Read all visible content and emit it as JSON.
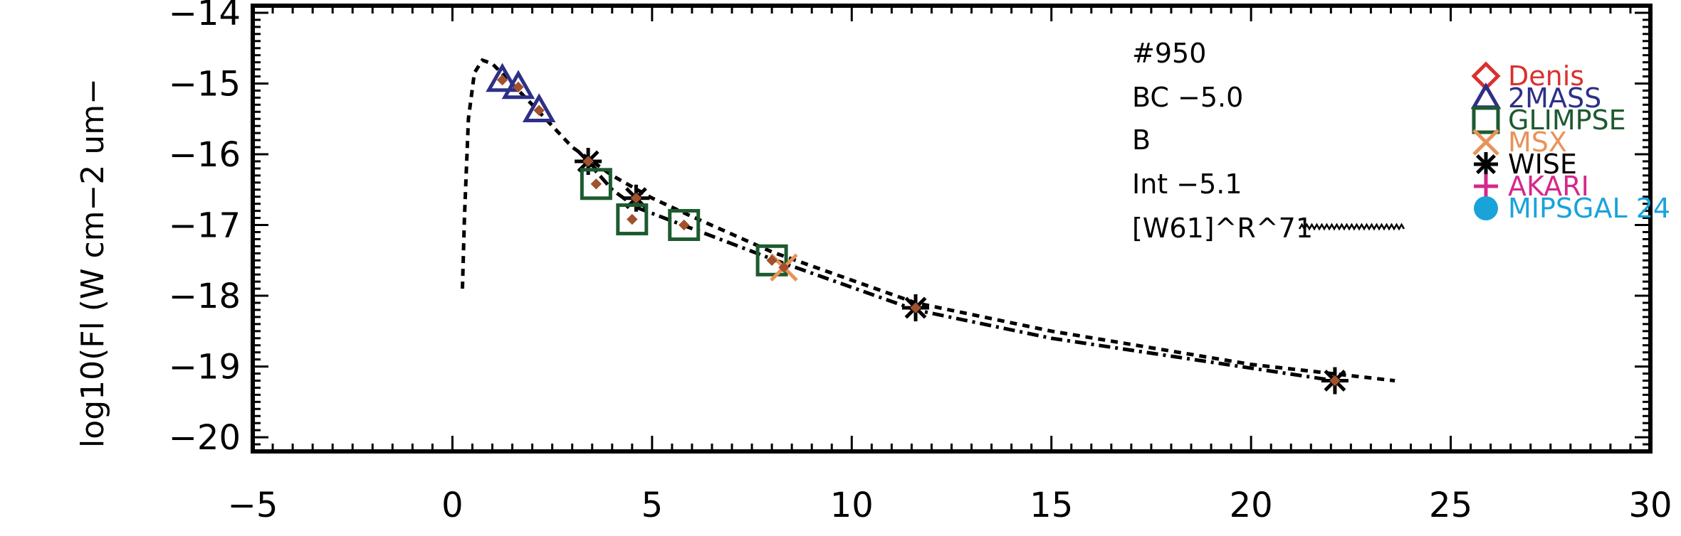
{
  "chart_data": {
    "type": "scatter",
    "title": "",
    "xlabel": "",
    "ylabel": "log10(Fl (W cm−2 um−",
    "xlim": [
      -5,
      30
    ],
    "ylim": [
      -20.2,
      -13.9
    ],
    "x_ticks": [
      -5,
      0,
      5,
      10,
      15,
      20,
      25,
      30
    ],
    "x_tick_labels": [
      "−5",
      "0",
      "5",
      "10",
      "15",
      "20",
      "25",
      "30"
    ],
    "y_ticks": [
      -20,
      -19,
      -18,
      -17,
      -16,
      -15,
      -14
    ],
    "y_tick_labels": [
      "−20",
      "−19",
      "−18",
      "−17",
      "−16",
      "−15",
      "−14"
    ],
    "annotations": [
      "#950",
      "BC −5.0",
      "B",
      "Int −5.1",
      "[W61]^R^71"
    ],
    "legend": {
      "placement": "top-right",
      "entries": [
        {
          "label": "Denis",
          "marker": "diamond",
          "color": "#d8312f"
        },
        {
          "label": "2MASS",
          "marker": "triangle",
          "color": "#2e2f86"
        },
        {
          "label": "GLIMPSE",
          "marker": "square",
          "color": "#1d5a30"
        },
        {
          "label": "MSX",
          "marker": "x",
          "color": "#e8935a"
        },
        {
          "label": "WISE",
          "marker": "asterisk",
          "color": "#000000"
        },
        {
          "label": "AKARI",
          "marker": "plus",
          "color": "#d6288a"
        },
        {
          "label": "MIPSGAL 24",
          "marker": "circle",
          "color": "#1aa3d9"
        }
      ]
    },
    "series": [
      {
        "marker": "triangle",
        "color": "#2e2f86",
        "points": [
          [
            1.25,
            -14.95
          ],
          [
            1.65,
            -15.05
          ],
          [
            2.17,
            -15.38
          ]
        ]
      },
      {
        "marker": "asterisk",
        "color": "#000000",
        "points": [
          [
            3.4,
            -16.1
          ],
          [
            4.6,
            -16.62
          ],
          [
            11.6,
            -18.17
          ],
          [
            22.1,
            -19.2
          ]
        ]
      },
      {
        "marker": "square",
        "color": "#1d5a30",
        "points": [
          [
            3.6,
            -16.42
          ],
          [
            4.5,
            -16.92
          ],
          [
            5.8,
            -17.0
          ],
          [
            8.0,
            -17.5
          ]
        ]
      },
      {
        "marker": "x",
        "color": "#e8935a",
        "points": [
          [
            8.3,
            -17.6
          ]
        ]
      },
      {
        "marker": "filled-diamond",
        "color": "#a0522d",
        "points": [
          [
            1.25,
            -14.95
          ],
          [
            1.65,
            -15.05
          ],
          [
            2.17,
            -15.38
          ],
          [
            3.4,
            -16.1
          ],
          [
            3.6,
            -16.42
          ],
          [
            4.5,
            -16.92
          ],
          [
            4.6,
            -16.62
          ],
          [
            5.8,
            -17.0
          ],
          [
            8.0,
            -17.5
          ],
          [
            8.3,
            -17.6
          ],
          [
            11.6,
            -18.17
          ],
          [
            22.1,
            -19.2
          ]
        ]
      },
      {
        "style": "dashed",
        "color": "#000000",
        "points": [
          [
            0.25,
            -17.9
          ],
          [
            0.3,
            -16.9
          ],
          [
            0.4,
            -15.5
          ],
          [
            0.55,
            -14.85
          ],
          [
            0.75,
            -14.67
          ],
          [
            1.0,
            -14.72
          ],
          [
            1.4,
            -14.95
          ],
          [
            2.0,
            -15.3
          ],
          [
            3.0,
            -15.9
          ],
          [
            4.0,
            -16.3
          ],
          [
            5.0,
            -16.62
          ],
          [
            6.0,
            -16.88
          ],
          [
            8.0,
            -17.38
          ],
          [
            11.6,
            -18.1
          ],
          [
            15.0,
            -18.5
          ],
          [
            20.0,
            -18.97
          ],
          [
            23.6,
            -19.2
          ]
        ]
      },
      {
        "style": "dash-dot",
        "color": "#000000",
        "points": [
          [
            3.3,
            -16.05
          ],
          [
            4.0,
            -16.5
          ],
          [
            4.6,
            -16.75
          ],
          [
            6.0,
            -17.05
          ],
          [
            8.0,
            -17.48
          ],
          [
            11.6,
            -18.2
          ],
          [
            15.0,
            -18.6
          ],
          [
            22.1,
            -19.2
          ]
        ]
      }
    ]
  }
}
